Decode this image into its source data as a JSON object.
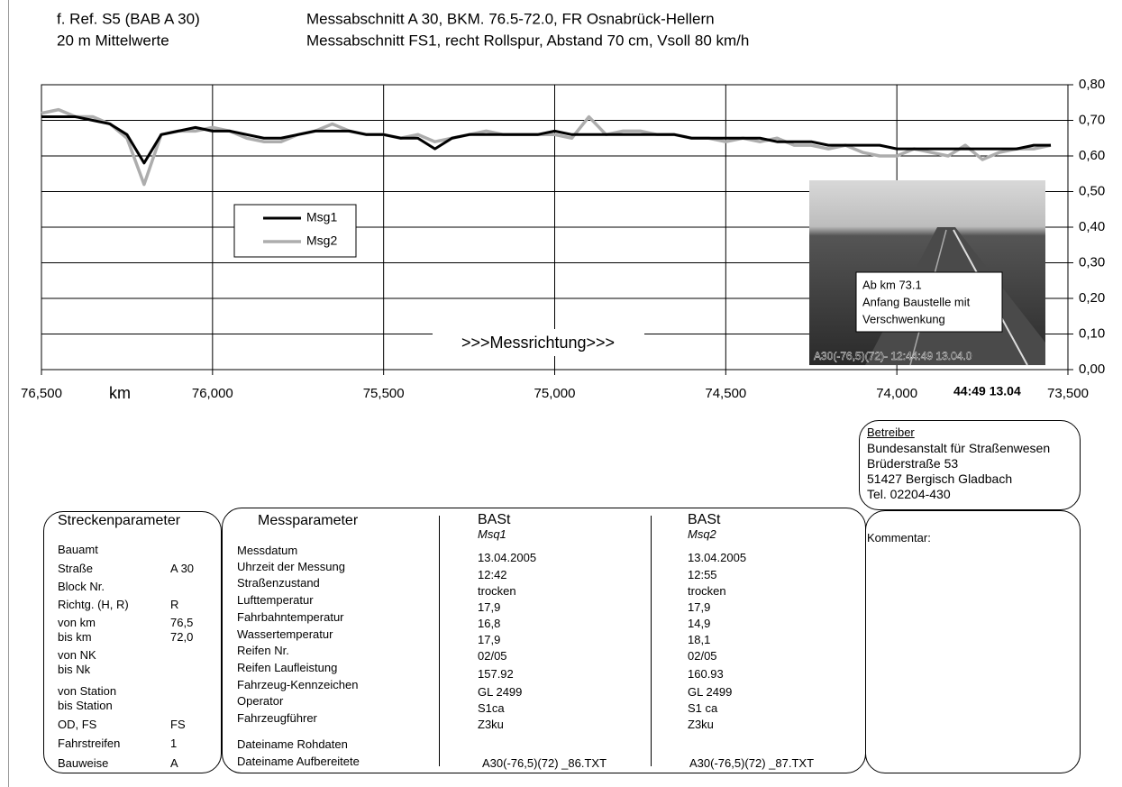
{
  "header": {
    "ref": "f. Ref. S5 (BAB A 30)",
    "averaging": "20 m Mittelwerte",
    "section": "Messabschnitt A 30, BKM. 76.5-72.0, FR Osnabrück-Hellern",
    "setup": "Messabschnitt FS1, recht Rollspur, Abstand 70 cm, Vsoll 80 km/h"
  },
  "chart_data": {
    "type": "line",
    "xlabel": "km",
    "annotation": ">>>Messrichtung>>>",
    "x": [
      76.5,
      76.45,
      76.4,
      76.35,
      76.3,
      76.25,
      76.2,
      76.15,
      76.1,
      76.05,
      76.0,
      75.95,
      75.9,
      75.85,
      75.8,
      75.75,
      75.7,
      75.65,
      75.6,
      75.55,
      75.5,
      75.45,
      75.4,
      75.35,
      75.3,
      75.25,
      75.2,
      75.15,
      75.1,
      75.05,
      75.0,
      74.95,
      74.9,
      74.85,
      74.8,
      74.75,
      74.7,
      74.65,
      74.6,
      74.55,
      74.5,
      74.45,
      74.4,
      74.35,
      74.3,
      74.25,
      74.2,
      74.15,
      74.1,
      74.05,
      74.0,
      73.95,
      73.9,
      73.85,
      73.8,
      73.75,
      73.7,
      73.65,
      73.6,
      73.55
    ],
    "series": [
      {
        "name": "Msg1",
        "color": "#000000",
        "values": [
          0.71,
          0.71,
          0.71,
          0.7,
          0.69,
          0.66,
          0.58,
          0.66,
          0.67,
          0.68,
          0.67,
          0.67,
          0.66,
          0.65,
          0.65,
          0.66,
          0.67,
          0.67,
          0.67,
          0.66,
          0.66,
          0.65,
          0.65,
          0.62,
          0.65,
          0.66,
          0.66,
          0.66,
          0.66,
          0.66,
          0.67,
          0.66,
          0.66,
          0.66,
          0.66,
          0.66,
          0.66,
          0.66,
          0.65,
          0.65,
          0.65,
          0.65,
          0.65,
          0.64,
          0.64,
          0.64,
          0.63,
          0.63,
          0.63,
          0.63,
          0.62,
          0.62,
          0.62,
          0.62,
          0.62,
          0.62,
          0.62,
          0.62,
          0.63,
          0.63
        ]
      },
      {
        "name": "Msg2",
        "color": "#adadad",
        "values": [
          0.72,
          0.73,
          0.71,
          0.71,
          0.69,
          0.65,
          0.52,
          0.66,
          0.67,
          0.67,
          0.68,
          0.67,
          0.65,
          0.64,
          0.64,
          0.66,
          0.67,
          0.69,
          0.67,
          0.66,
          0.66,
          0.65,
          0.66,
          0.64,
          0.65,
          0.66,
          0.67,
          0.66,
          0.66,
          0.66,
          0.66,
          0.65,
          0.71,
          0.66,
          0.67,
          0.67,
          0.66,
          0.66,
          0.65,
          0.65,
          0.64,
          0.65,
          0.64,
          0.65,
          0.63,
          0.63,
          0.62,
          0.63,
          0.61,
          0.6,
          0.6,
          0.62,
          0.61,
          0.6,
          0.63,
          0.59,
          0.61,
          0.62,
          0.62,
          0.63
        ]
      }
    ],
    "xlim": [
      76.5,
      73.5
    ],
    "xticks": [
      {
        "value": 76.5,
        "label": "76,500"
      },
      {
        "value": 76.0,
        "label": "76,000"
      },
      {
        "value": 75.5,
        "label": "75,500"
      },
      {
        "value": 75.0,
        "label": "75,000"
      },
      {
        "value": 74.5,
        "label": "74,500"
      },
      {
        "value": 74.0,
        "label": "74,000"
      },
      {
        "value": 73.5,
        "label": "73,500"
      }
    ],
    "ylim": [
      0,
      0.8
    ],
    "yticks": [
      {
        "value": 0,
        "label": "0,00"
      },
      {
        "value": 0.1,
        "label": "0,10"
      },
      {
        "value": 0.2,
        "label": "0,20"
      },
      {
        "value": 0.3,
        "label": "0,30"
      },
      {
        "value": 0.4,
        "label": "0,40"
      },
      {
        "value": 0.5,
        "label": "0,50"
      },
      {
        "value": 0.6,
        "label": "0,60"
      },
      {
        "value": 0.7,
        "label": "0,70"
      },
      {
        "value": 0.8,
        "label": "0,80"
      }
    ],
    "grid": true
  },
  "photo": {
    "lines": [
      "Ab km 73.1",
      "Anfang Baustelle mit",
      "Verschwenkung"
    ],
    "caption": "A30(-76,5)(72)- 12:44:49 13.04.0",
    "stamp": "44:49 13.04"
  },
  "operator": {
    "title": "Betreiber",
    "lines": [
      "Bundesanstalt für Straßenwesen",
      "Brüderstraße 53",
      "51427 Bergisch Gladbach",
      "Tel. 02204-430"
    ]
  },
  "route_params": {
    "title": "Streckenparameter",
    "rows": [
      {
        "label": "Bauamt"
      },
      {
        "label": "Straße",
        "value": "A 30"
      },
      {
        "label": "Block Nr."
      },
      {
        "label": "Richtg. (H, R)",
        "value": "R"
      },
      {
        "label": "von km",
        "value": "76,5"
      },
      {
        "label": "bis km",
        "value": "72,0"
      },
      {
        "label": "von NK"
      },
      {
        "label": "bis Nk"
      },
      {
        "label": "von Station"
      },
      {
        "label": "bis Station"
      },
      {
        "label": "OD, FS",
        "value": "FS"
      },
      {
        "label": "Fahrstreifen",
        "value": "1"
      },
      {
        "label": "Bauweise",
        "value": "A"
      }
    ]
  },
  "measurement": {
    "title": "Messparameter",
    "labels": [
      "Messdatum",
      "Uhrzeit der Messung",
      "Straßenzustand",
      "Lufttemperatur",
      "Fahrbahntemperatur",
      "Wassertemperatur",
      "Reifen Nr.",
      "Reifen Laufleistung",
      "Fahrzeug-Kennzeichen",
      "Operator",
      "Fahrzeugführer",
      "Dateiname Rohdaten",
      "Dateiname Aufbereitete"
    ],
    "columns": [
      {
        "name": "BASt",
        "sub": "Msq1",
        "values": [
          "13.04.2005",
          "12:42",
          "trocken",
          "17,9",
          "16,8",
          "17,9",
          "02/05",
          "157.92",
          "GL 2499",
          "S1ca",
          "Z3ku"
        ],
        "file": "A30(-76,5)(72) _86.TXT"
      },
      {
        "name": "BASt",
        "sub": "Msq2",
        "values": [
          "13.04.2005",
          "12:55",
          "trocken",
          "17,9",
          "14,9",
          "18,1",
          "02/05",
          "160.93",
          "GL 2499",
          "S1 ca",
          "Z3ku"
        ],
        "file": "A30(-76,5)(72) _87.TXT"
      }
    ]
  },
  "comment": {
    "title": "Kommentar:"
  }
}
